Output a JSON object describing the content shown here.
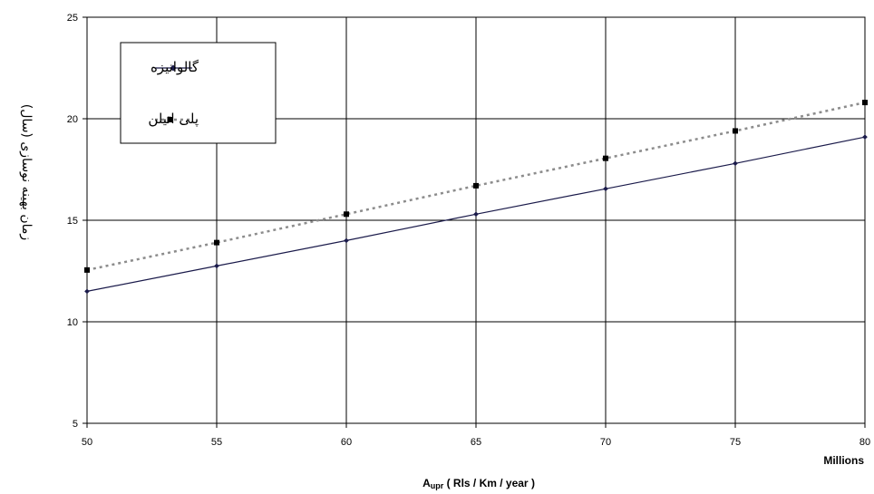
{
  "chart_data": {
    "type": "line",
    "x": [
      50,
      55,
      60,
      65,
      70,
      75,
      80
    ],
    "series": [
      {
        "name": "گالوانیزه",
        "values": [
          11.5,
          12.75,
          14.0,
          15.3,
          16.55,
          17.8,
          19.1
        ],
        "color": "#1a1a4a",
        "line_style": "solid",
        "marker": "diamond"
      },
      {
        "name": "پلی اتیلن",
        "values": [
          12.55,
          13.9,
          15.3,
          16.7,
          18.05,
          19.4,
          20.8
        ],
        "color": "#8c8c8c",
        "marker_color": "#000000",
        "line_style": "dotted",
        "marker": "square"
      }
    ],
    "xlim": [
      50,
      80
    ],
    "ylim": [
      5,
      25
    ],
    "xticks": [
      "50",
      "55",
      "60",
      "65",
      "70",
      "75",
      "80"
    ],
    "yticks": [
      "5",
      "10",
      "15",
      "20",
      "25"
    ],
    "ylabel": "زمان بهینه نوسازی (سال)",
    "xlabel_main": "A",
    "xlabel_sub": "upr",
    "xlabel_rest": " ( Rls / Km / year )",
    "x_multiplier_label": "Millions",
    "grid": true,
    "legend_position": "top-left"
  }
}
